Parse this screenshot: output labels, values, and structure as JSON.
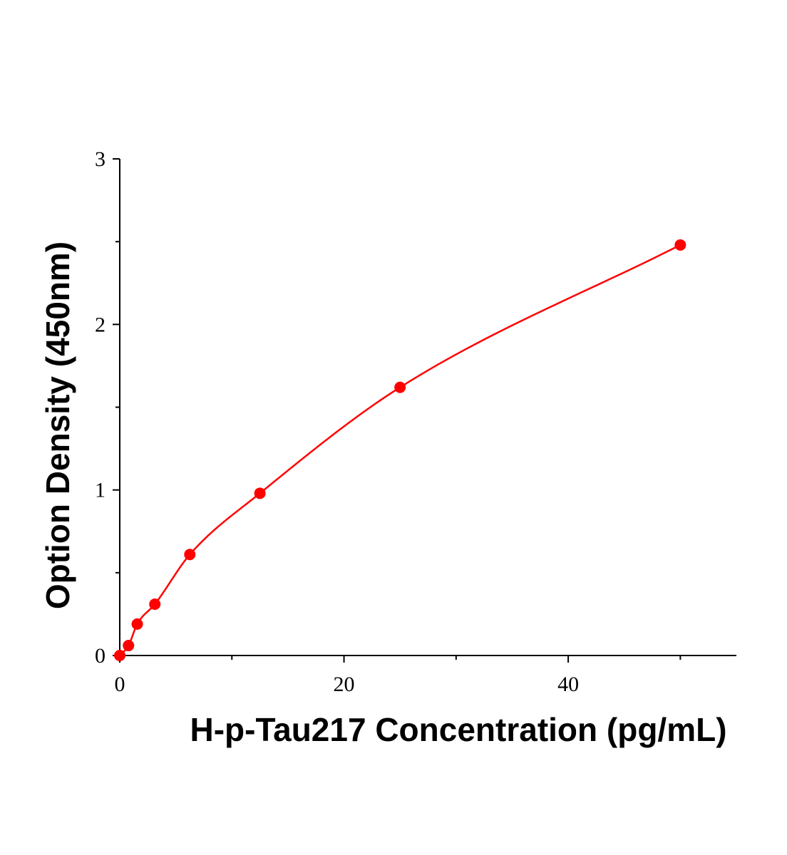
{
  "chart_data": {
    "type": "scatter",
    "title": "",
    "xlabel": "H-p-Tau217 Concentration (pg/mL)",
    "ylabel": "Option Density (450nm)",
    "xlim": [
      0,
      55
    ],
    "ylim": [
      0,
      3
    ],
    "x_ticks": [
      0,
      20,
      40
    ],
    "x_minor_ticks": [
      10,
      30,
      50
    ],
    "y_ticks": [
      0,
      1,
      2,
      3
    ],
    "y_minor_ticks": [
      0.5,
      1.5,
      2.5
    ],
    "grid": false,
    "legend": "none",
    "colors": {
      "series": "#ff0000",
      "axis": "#000000"
    },
    "series": [
      {
        "x": [
          0,
          0.78,
          1.56,
          3.13,
          6.25,
          12.5,
          25,
          50
        ],
        "y": [
          0.0,
          0.06,
          0.19,
          0.31,
          0.61,
          0.98,
          1.62,
          2.48
        ],
        "fit": "smooth-curve"
      }
    ]
  }
}
